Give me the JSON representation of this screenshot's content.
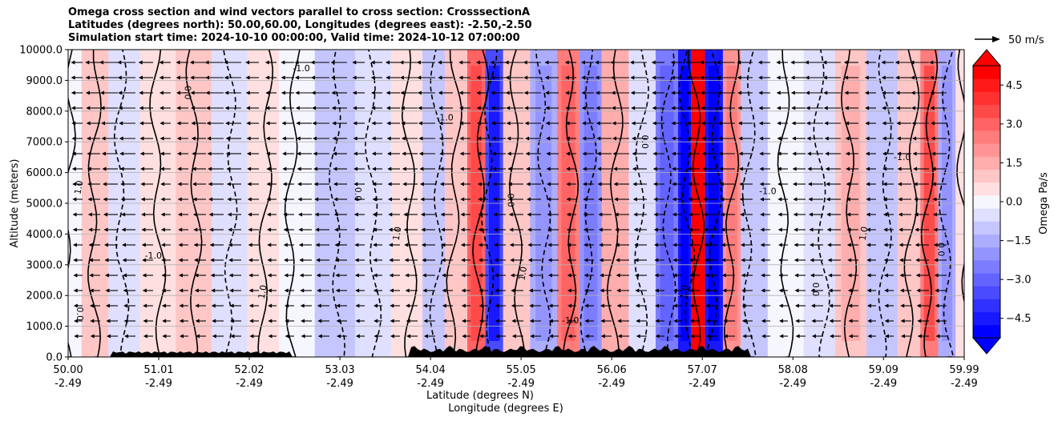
{
  "chart_data": {
    "type": "heatmap",
    "title": [
      "Omega cross section and wind vectors parallel to cross section: CrosssectionA",
      "Latitudes (degrees north): 50.00,60.00, Longitudes (degrees east): -2.50,-2.50",
      "Simulation start time: 2024-10-10 00:00:00, Valid time: 2024-10-12 07:00:00"
    ],
    "ylabel": "Altitude (meters)",
    "xlabel": "Latitude (degrees N)",
    "xlabel2": "Longitude (degrees E)",
    "ylim": [
      0,
      10000
    ],
    "xlim": [
      50.0,
      59.99
    ],
    "y_ticks": [
      "0.0",
      "1000.0",
      "2000.0",
      "3000.0",
      "4000.0",
      "5000.0",
      "6000.0",
      "7000.0",
      "8000.0",
      "9000.0",
      "10000.0"
    ],
    "y_tick_values": [
      0,
      1000,
      2000,
      3000,
      4000,
      5000,
      6000,
      7000,
      8000,
      9000,
      10000
    ],
    "x_ticks": [
      {
        "lat": "50.00",
        "lon": "-2.49",
        "value": 50.0
      },
      {
        "lat": "51.01",
        "lon": "-2.49",
        "value": 51.01
      },
      {
        "lat": "52.02",
        "lon": "-2.49",
        "value": 52.02
      },
      {
        "lat": "53.03",
        "lon": "-2.49",
        "value": 53.03
      },
      {
        "lat": "54.04",
        "lon": "-2.49",
        "value": 54.04
      },
      {
        "lat": "55.05",
        "lon": "-2.49",
        "value": 55.05
      },
      {
        "lat": "56.06",
        "lon": "-2.49",
        "value": 56.06
      },
      {
        "lat": "57.07",
        "lon": "-2.49",
        "value": 57.07
      },
      {
        "lat": "58.08",
        "lon": "-2.49",
        "value": 58.08
      },
      {
        "lat": "59.09",
        "lon": "-2.49",
        "value": 59.09
      },
      {
        "lat": "59.99",
        "lon": "-2.49",
        "value": 59.99
      }
    ],
    "grid": "horizontal",
    "colorbar": {
      "label": "Omega Pa/s",
      "ticks": [
        "4.5",
        "3.0",
        "1.5",
        "0.0",
        "−1.5",
        "−3.0",
        "−4.5"
      ],
      "tick_values": [
        4.5,
        3.0,
        1.5,
        0.0,
        -1.5,
        -3.0,
        -4.5
      ],
      "range": [
        -5.25,
        5.25
      ],
      "extend": "both",
      "colormap": "bwr"
    },
    "vector_key": "50 m/s",
    "contour_labels": [
      "0.0",
      "1.0",
      "-1.0"
    ],
    "omega_bands": [
      {
        "lat": 50.0,
        "value": 0.1
      },
      {
        "lat": 50.3,
        "value": 0.9
      },
      {
        "lat": 50.6,
        "value": -0.3
      },
      {
        "lat": 51.0,
        "value": 0.3
      },
      {
        "lat": 51.4,
        "value": 0.8
      },
      {
        "lat": 51.8,
        "value": -0.5
      },
      {
        "lat": 52.2,
        "value": 0.5
      },
      {
        "lat": 52.5,
        "value": 0.2
      },
      {
        "lat": 53.0,
        "value": -0.8
      },
      {
        "lat": 53.4,
        "value": -0.5
      },
      {
        "lat": 53.8,
        "value": 0.6
      },
      {
        "lat": 54.1,
        "value": -0.9
      },
      {
        "lat": 54.3,
        "value": 1.2
      },
      {
        "lat": 54.6,
        "value": 3.0
      },
      {
        "lat": 54.7,
        "value": -3.5
      },
      {
        "lat": 55.0,
        "value": 0.8
      },
      {
        "lat": 55.3,
        "value": -1.6
      },
      {
        "lat": 55.6,
        "value": 2.6
      },
      {
        "lat": 55.8,
        "value": -2.0
      },
      {
        "lat": 56.1,
        "value": 1.4
      },
      {
        "lat": 56.4,
        "value": -0.6
      },
      {
        "lat": 56.7,
        "value": -2.4
      },
      {
        "lat": 56.9,
        "value": -4.8
      },
      {
        "lat": 57.0,
        "value": 5.0
      },
      {
        "lat": 57.2,
        "value": -4.5
      },
      {
        "lat": 57.4,
        "value": 2.0
      },
      {
        "lat": 57.6,
        "value": -1.2
      },
      {
        "lat": 58.0,
        "value": 0.2
      },
      {
        "lat": 58.4,
        "value": -0.3
      },
      {
        "lat": 58.7,
        "value": 1.3
      },
      {
        "lat": 59.1,
        "value": -1.2
      },
      {
        "lat": 59.4,
        "value": 0.9
      },
      {
        "lat": 59.6,
        "value": 2.8
      },
      {
        "lat": 59.8,
        "value": -1.8
      },
      {
        "lat": 59.99,
        "value": 0.3
      }
    ]
  }
}
